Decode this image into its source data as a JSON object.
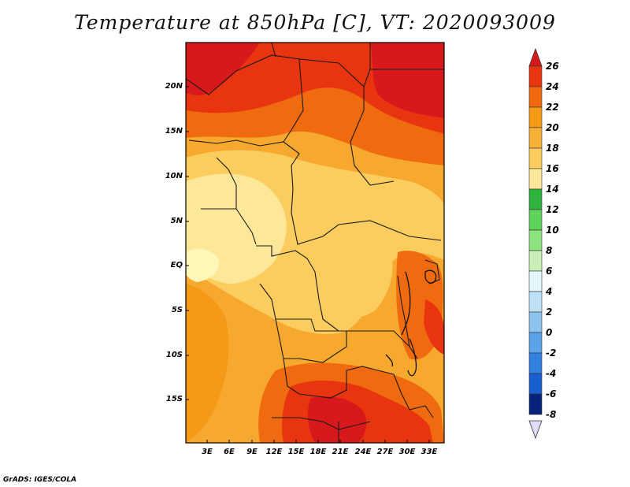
{
  "title": "Temperature at 850hPa [C], VT: 2020093009",
  "credit": "GrADS: IGES/COLA",
  "map": {
    "lat_labels": [
      "20N",
      "15N",
      "10N",
      "5N",
      "EQ",
      "5S",
      "10S",
      "15S"
    ],
    "lon_labels": [
      "3E",
      "6E",
      "9E",
      "12E",
      "15E",
      "18E",
      "21E",
      "24E",
      "27E",
      "30E",
      "33E"
    ]
  },
  "colorbar": {
    "labels": [
      "26",
      "24",
      "22",
      "20",
      "18",
      "16",
      "14",
      "12",
      "10",
      "8",
      "6",
      "4",
      "2",
      "0",
      "-2",
      "-4",
      "-6",
      "-8"
    ],
    "colors": [
      "#d7191c",
      "#e8350f",
      "#f06a10",
      "#f59a16",
      "#f7b238",
      "#fbcd5e",
      "#fde89a",
      "#fff7b8",
      "#2eb33e",
      "#5fd35c",
      "#8fe37e",
      "#c8f0b6",
      "#e6f7f9",
      "#bfe1f7",
      "#8ec4f0",
      "#5ba3e8",
      "#3180dd",
      "#1a5fd0",
      "#0c3fb0",
      "#08217a",
      "#e5e5ff"
    ],
    "top_color": "#d7191c",
    "bottom_color": "#e0dcf5"
  }
}
